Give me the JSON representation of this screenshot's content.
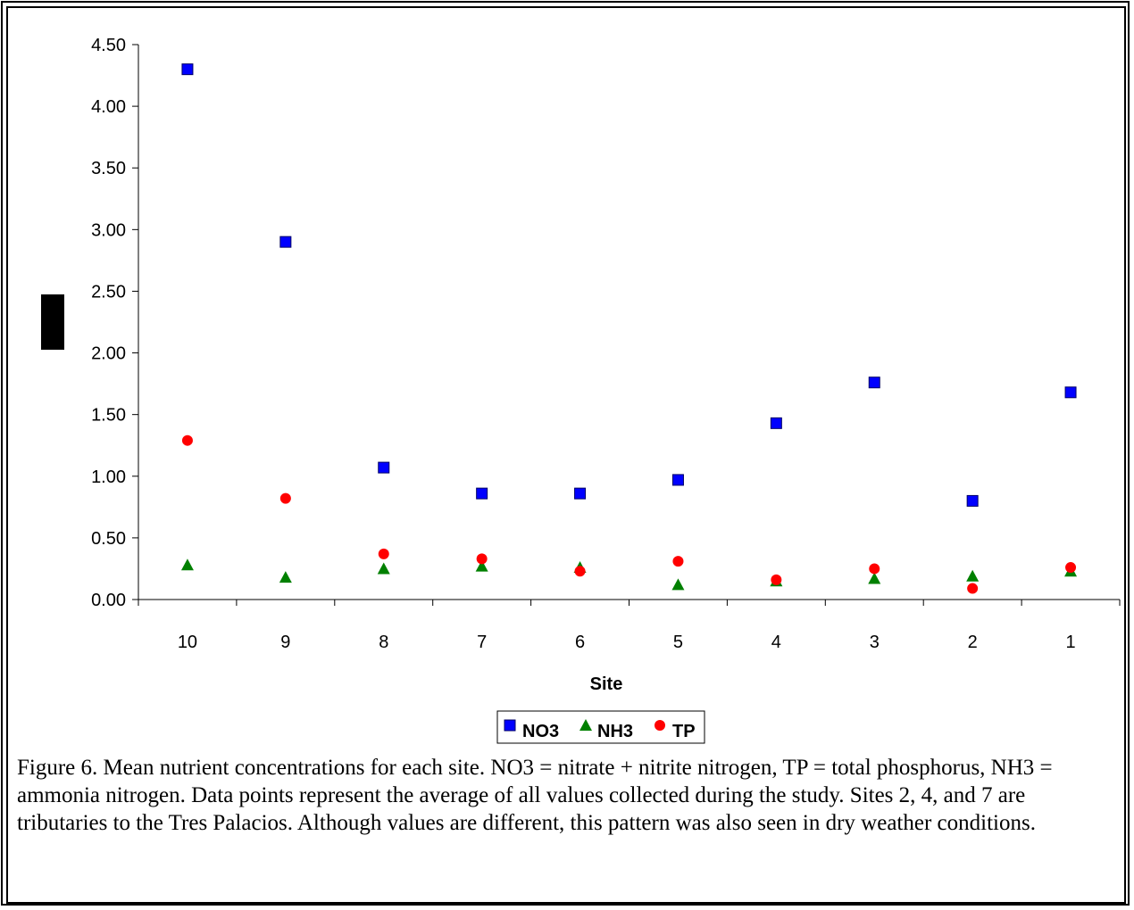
{
  "chart_data": {
    "type": "scatter",
    "title": "",
    "xlabel": "Site",
    "ylabel": "",
    "categories": [
      "10",
      "9",
      "8",
      "7",
      "6",
      "5",
      "4",
      "3",
      "2",
      "1"
    ],
    "ylim": [
      0,
      4.5
    ],
    "yticks": [
      "0.00",
      "0.50",
      "1.00",
      "1.50",
      "2.00",
      "2.50",
      "3.00",
      "3.50",
      "4.00",
      "4.50"
    ],
    "grid": false,
    "legend_placement": "bottom",
    "series": [
      {
        "name": "NO3",
        "marker": "square",
        "color": "#0000ff",
        "values": [
          4.3,
          2.9,
          1.07,
          0.86,
          0.86,
          0.97,
          1.43,
          1.76,
          0.8,
          1.68
        ]
      },
      {
        "name": "NH3",
        "marker": "triangle",
        "color": "#008000",
        "values": [
          0.28,
          0.18,
          0.25,
          0.27,
          0.26,
          0.12,
          0.15,
          0.17,
          0.19,
          0.23
        ]
      },
      {
        "name": "TP",
        "marker": "circle",
        "color": "#ff0000",
        "values": [
          1.29,
          0.82,
          0.37,
          0.33,
          0.23,
          0.31,
          0.16,
          0.25,
          0.09,
          0.26
        ]
      }
    ]
  },
  "caption": "Figure 6. Mean nutrient concentrations for each site. NO3 = nitrate + nitrite nitrogen, TP = total phosphorus, NH3 = ammonia nitrogen. Data points represent the average of all values collected during the study. Sites 2, 4, and 7 are tributaries to the Tres Palacios. Although values are different, this pattern was also seen in dry weather conditions."
}
